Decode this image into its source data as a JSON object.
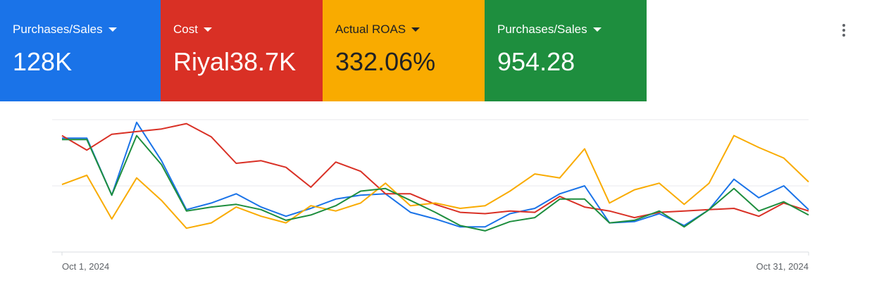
{
  "scorecards": [
    {
      "label": "Purchases/Sales",
      "value": "128K",
      "color": "#1a73e8"
    },
    {
      "label": "Cost",
      "value": "Riyal38.7K",
      "color": "#d93025"
    },
    {
      "label": "Actual ROAS",
      "value": "332.06%",
      "color": "#f9ab00"
    },
    {
      "label": "Purchases/Sales",
      "value": "954.28",
      "color": "#1e8e3e"
    }
  ],
  "menu_icon": "more-vert-icon",
  "chart_data": {
    "type": "line",
    "x_start_label": "Oct 1, 2024",
    "x_end_label": "Oct 31, 2024",
    "x": [
      "Oct 1, 2024",
      "Oct 2, 2024",
      "Oct 3, 2024",
      "Oct 4, 2024",
      "Oct 5, 2024",
      "Oct 6, 2024",
      "Oct 7, 2024",
      "Oct 8, 2024",
      "Oct 9, 2024",
      "Oct 10, 2024",
      "Oct 11, 2024",
      "Oct 12, 2024",
      "Oct 13, 2024",
      "Oct 14, 2024",
      "Oct 15, 2024",
      "Oct 16, 2024",
      "Oct 17, 2024",
      "Oct 18, 2024",
      "Oct 19, 2024",
      "Oct 20, 2024",
      "Oct 21, 2024",
      "Oct 22, 2024",
      "Oct 23, 2024",
      "Oct 24, 2024",
      "Oct 25, 2024",
      "Oct 26, 2024",
      "Oct 27, 2024",
      "Oct 28, 2024",
      "Oct 29, 2024",
      "Oct 30, 2024",
      "Oct 31, 2024"
    ],
    "ylim": [
      0,
      1
    ],
    "grid": true,
    "series": [
      {
        "color": "#1a73e8",
        "values": [
          0.86,
          0.86,
          0.43,
          0.98,
          0.69,
          0.32,
          0.37,
          0.44,
          0.34,
          0.27,
          0.33,
          0.4,
          0.43,
          0.44,
          0.3,
          0.25,
          0.19,
          0.19,
          0.29,
          0.33,
          0.44,
          0.5,
          0.22,
          0.23,
          0.29,
          0.2,
          0.32,
          0.55,
          0.41,
          0.5,
          0.32
        ]
      },
      {
        "color": "#d93025",
        "values": [
          0.88,
          0.77,
          0.89,
          0.91,
          0.93,
          0.97,
          0.87,
          0.67,
          0.69,
          0.64,
          0.49,
          0.68,
          0.61,
          0.44,
          0.44,
          0.36,
          0.3,
          0.29,
          0.31,
          0.3,
          0.42,
          0.34,
          0.31,
          0.26,
          0.3,
          0.31,
          0.32,
          0.33,
          0.27,
          0.37,
          0.31
        ]
      },
      {
        "color": "#f9ab00",
        "values": [
          0.51,
          0.58,
          0.25,
          0.56,
          0.39,
          0.18,
          0.22,
          0.34,
          0.27,
          0.22,
          0.35,
          0.31,
          0.37,
          0.52,
          0.35,
          0.37,
          0.33,
          0.35,
          0.46,
          0.59,
          0.56,
          0.78,
          0.37,
          0.47,
          0.52,
          0.36,
          0.52,
          0.88,
          0.79,
          0.71,
          0.53
        ]
      },
      {
        "color": "#1e8e3e",
        "values": [
          0.85,
          0.85,
          0.43,
          0.88,
          0.66,
          0.31,
          0.34,
          0.36,
          0.32,
          0.24,
          0.28,
          0.35,
          0.46,
          0.48,
          0.39,
          0.3,
          0.2,
          0.16,
          0.23,
          0.26,
          0.4,
          0.4,
          0.22,
          0.24,
          0.31,
          0.19,
          0.32,
          0.48,
          0.31,
          0.38,
          0.28
        ]
      }
    ]
  }
}
